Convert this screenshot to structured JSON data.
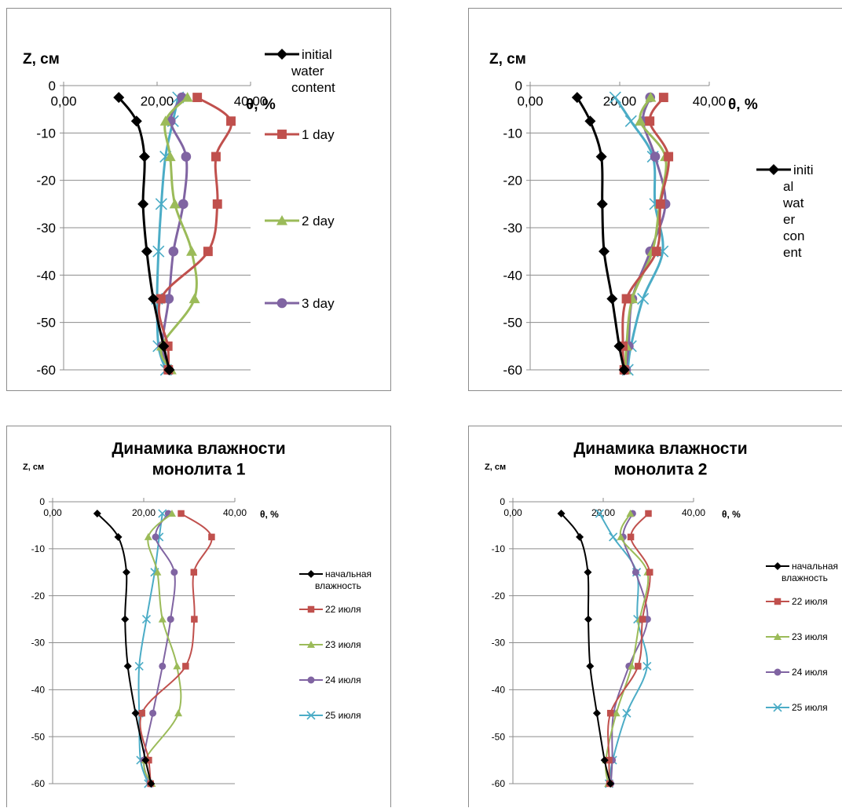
{
  "chart_data": [
    {
      "type": "line",
      "title": "",
      "ylabel": "Z, см",
      "xlabel": "θ, %",
      "xlim": [
        0,
        40
      ],
      "ylim": [
        -60,
        0
      ],
      "x_ticks": [
        "0,00",
        "20,00",
        "40,00"
      ],
      "y_ticks": [
        "0",
        "-10",
        "-20",
        "-30",
        "-40",
        "-50",
        "-60"
      ],
      "grid": "horizontal",
      "legend": "right",
      "depths": [
        -2.5,
        -7.5,
        -15,
        -25,
        -35,
        -45,
        -55,
        -60
      ],
      "series": [
        {
          "name": "initial water content",
          "color": "#000000",
          "marker": "diamond",
          "x": [
            11.8,
            15.6,
            17.3,
            17.0,
            17.8,
            19.2,
            21.4,
            22.6
          ]
        },
        {
          "name": "1 day",
          "color": "#c0504d",
          "marker": "square",
          "x": [
            28.6,
            35.8,
            32.6,
            32.9,
            30.9,
            20.8,
            22.3,
            22.4
          ]
        },
        {
          "name": "2 day",
          "color": "#9bbb59",
          "marker": "triangle",
          "x": [
            26.5,
            21.8,
            22.8,
            23.8,
            27.4,
            28.0,
            21.0,
            23.0
          ]
        },
        {
          "name": "3 day",
          "color": "#8064a2",
          "marker": "circle",
          "x": [
            25.3,
            22.9,
            26.2,
            25.6,
            23.5,
            22.5,
            21.1,
            22.5
          ]
        },
        {
          "name": "",
          "color": "#4bacc6",
          "marker": "x",
          "x": [
            24.5,
            23.4,
            21.8,
            20.9,
            20.3,
            20.0,
            20.3,
            21.9
          ]
        }
      ]
    },
    {
      "type": "line",
      "title": "",
      "ylabel": "Z, см",
      "xlabel": "θ, %",
      "xlim": [
        0,
        40
      ],
      "ylim": [
        -60,
        0
      ],
      "x_ticks": [
        "0,00",
        "20,00",
        "40,00"
      ],
      "y_ticks": [
        "0",
        "-10",
        "-20",
        "-30",
        "-40",
        "-50",
        "-60"
      ],
      "grid": "horizontal",
      "legend": "right",
      "depths": [
        -2.5,
        -7.5,
        -15,
        -25,
        -35,
        -45,
        -55,
        -60
      ],
      "series": [
        {
          "name": "initial water content",
          "color": "#000000",
          "marker": "diamond",
          "x": [
            10.5,
            13.4,
            15.9,
            16.1,
            16.5,
            18.3,
            19.9,
            21.0
          ]
        },
        {
          "name": "",
          "color": "#c0504d",
          "marker": "square",
          "x": [
            29.8,
            26.7,
            30.9,
            29.1,
            28.2,
            21.5,
            20.7,
            21.0
          ]
        },
        {
          "name": "",
          "color": "#9bbb59",
          "marker": "triangle",
          "x": [
            26.9,
            24.6,
            30.2,
            28.9,
            27.3,
            22.8,
            21.5,
            21.3
          ]
        },
        {
          "name": "",
          "color": "#8064a2",
          "marker": "circle",
          "x": [
            26.8,
            25.2,
            27.9,
            30.2,
            26.8,
            22.8,
            22.0,
            21.4
          ]
        },
        {
          "name": "",
          "color": "#4bacc6",
          "marker": "x",
          "x": [
            19.0,
            22.5,
            27.4,
            27.9,
            29.6,
            25.2,
            22.5,
            21.8
          ]
        }
      ]
    },
    {
      "type": "line",
      "title": "Динамика влажности монолита 1",
      "ylabel": "Z, см",
      "xlabel": "θ, %",
      "xlim": [
        0,
        40
      ],
      "ylim": [
        -60,
        0
      ],
      "x_ticks": [
        "0,00",
        "20,00",
        "40,00"
      ],
      "y_ticks": [
        "0",
        "-10",
        "-20",
        "-30",
        "-40",
        "-50",
        "-60"
      ],
      "grid": "horizontal",
      "legend": "right",
      "depths": [
        -2.5,
        -7.5,
        -15,
        -25,
        -35,
        -45,
        -55,
        -60
      ],
      "series": [
        {
          "name": "начальная влажность",
          "color": "#000000",
          "marker": "diamond",
          "x": [
            9.8,
            14.4,
            16.2,
            15.9,
            16.5,
            18.2,
            20.4,
            21.6
          ]
        },
        {
          "name": "22 июля",
          "color": "#c0504d",
          "marker": "square",
          "x": [
            28.2,
            34.9,
            31.0,
            31.1,
            29.2,
            19.6,
            21.1,
            21.5
          ]
        },
        {
          "name": "23 июля",
          "color": "#9bbb59",
          "marker": "triangle",
          "x": [
            26.2,
            21.0,
            23.0,
            24.1,
            27.3,
            27.6,
            20.3,
            21.8
          ]
        },
        {
          "name": "24 июля",
          "color": "#8064a2",
          "marker": "circle",
          "x": [
            25.4,
            22.6,
            26.7,
            25.9,
            24.1,
            22.0,
            20.0,
            21.4
          ]
        },
        {
          "name": "25 июля",
          "color": "#4bacc6",
          "marker": "x",
          "x": [
            24.1,
            23.4,
            22.4,
            20.6,
            19.0,
            19.0,
            19.3,
            21.0
          ]
        }
      ]
    },
    {
      "type": "line",
      "title": "Динамика влажности монолита 2",
      "ylabel": "Z, см",
      "xlabel": "θ, %",
      "xlim": [
        0,
        40
      ],
      "ylim": [
        -60,
        0
      ],
      "x_ticks": [
        "0,00",
        "20,00",
        "40,00"
      ],
      "y_ticks": [
        "0",
        "-10",
        "-20",
        "-30",
        "-40",
        "-50",
        "-60"
      ],
      "grid": "horizontal",
      "legend": "right",
      "depths": [
        -2.5,
        -7.5,
        -15,
        -25,
        -35,
        -45,
        -55,
        -60
      ],
      "series": [
        {
          "name": "начальная влажность",
          "color": "#000000",
          "marker": "diamond",
          "x": [
            10.7,
            14.8,
            16.6,
            16.7,
            17.1,
            18.6,
            20.3,
            21.6
          ]
        },
        {
          "name": "22 июля",
          "color": "#c0504d",
          "marker": "square",
          "x": [
            30.0,
            26.1,
            30.3,
            28.7,
            27.7,
            21.6,
            21.3,
            21.4
          ]
        },
        {
          "name": "23 июля",
          "color": "#9bbb59",
          "marker": "triangle",
          "x": [
            26.0,
            23.9,
            29.8,
            28.1,
            26.3,
            22.9,
            20.6,
            21.1
          ]
        },
        {
          "name": "24 июля",
          "color": "#8064a2",
          "marker": "circle",
          "x": [
            26.5,
            24.4,
            27.2,
            29.8,
            25.7,
            22.3,
            22.0,
            21.7
          ]
        },
        {
          "name": "25 июля",
          "color": "#4bacc6",
          "marker": "x",
          "x": [
            19.2,
            22.2,
            27.4,
            27.6,
            29.7,
            25.2,
            22.1,
            21.3
          ]
        }
      ]
    }
  ]
}
